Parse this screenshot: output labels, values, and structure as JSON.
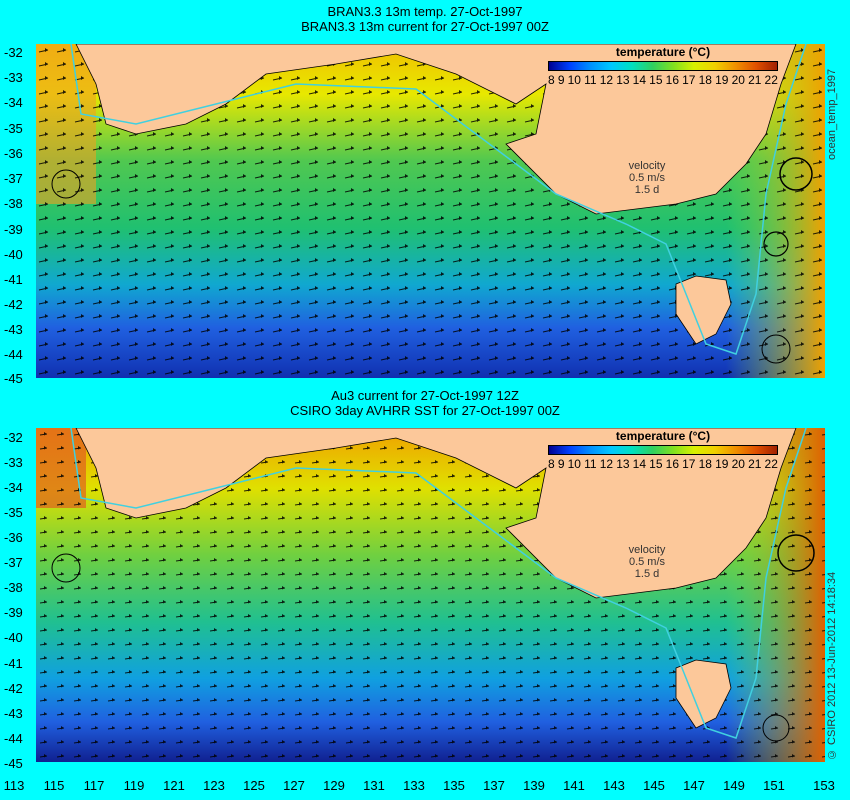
{
  "top": {
    "title1": "BRAN3.3 13m temp. 27-Oct-1997",
    "title2": "BRAN3.3 13m current for 27-Oct-1997 00Z",
    "side_label": "ocean_temp_1997"
  },
  "bottom": {
    "title1": "Au3 current for 27-Oct-1997 12Z",
    "title2": "CSIRO 3day AVHRR SST for 27-Oct-1997 00Z",
    "side_label": "© CSIRO 2012   13-Jun-2012 14:18:34"
  },
  "colorbar": {
    "title": "temperature (°C)",
    "ticks": [
      "8",
      "9",
      "10",
      "11",
      "12",
      "13",
      "14",
      "15",
      "16",
      "17",
      "18",
      "19",
      "20",
      "21",
      "22"
    ]
  },
  "velocity": {
    "label": "velocity",
    "value": "0.5 m/s",
    "scale": "1.5 d"
  },
  "y_ticks": [
    "-32",
    "-33",
    "-34",
    "-35",
    "-36",
    "-37",
    "-38",
    "-39",
    "-40",
    "-41",
    "-42",
    "-43",
    "-44",
    "-45"
  ],
  "x_ticks": [
    "113",
    "115",
    "117",
    "119",
    "121",
    "123",
    "125",
    "127",
    "129",
    "131",
    "133",
    "135",
    "137",
    "139",
    "141",
    "143",
    "145",
    "147",
    "149",
    "151",
    "153"
  ],
  "colors": {
    "land": "#fcc89a",
    "background": "#00ffff",
    "warm": "#f07820",
    "cold": "#1030c0"
  }
}
